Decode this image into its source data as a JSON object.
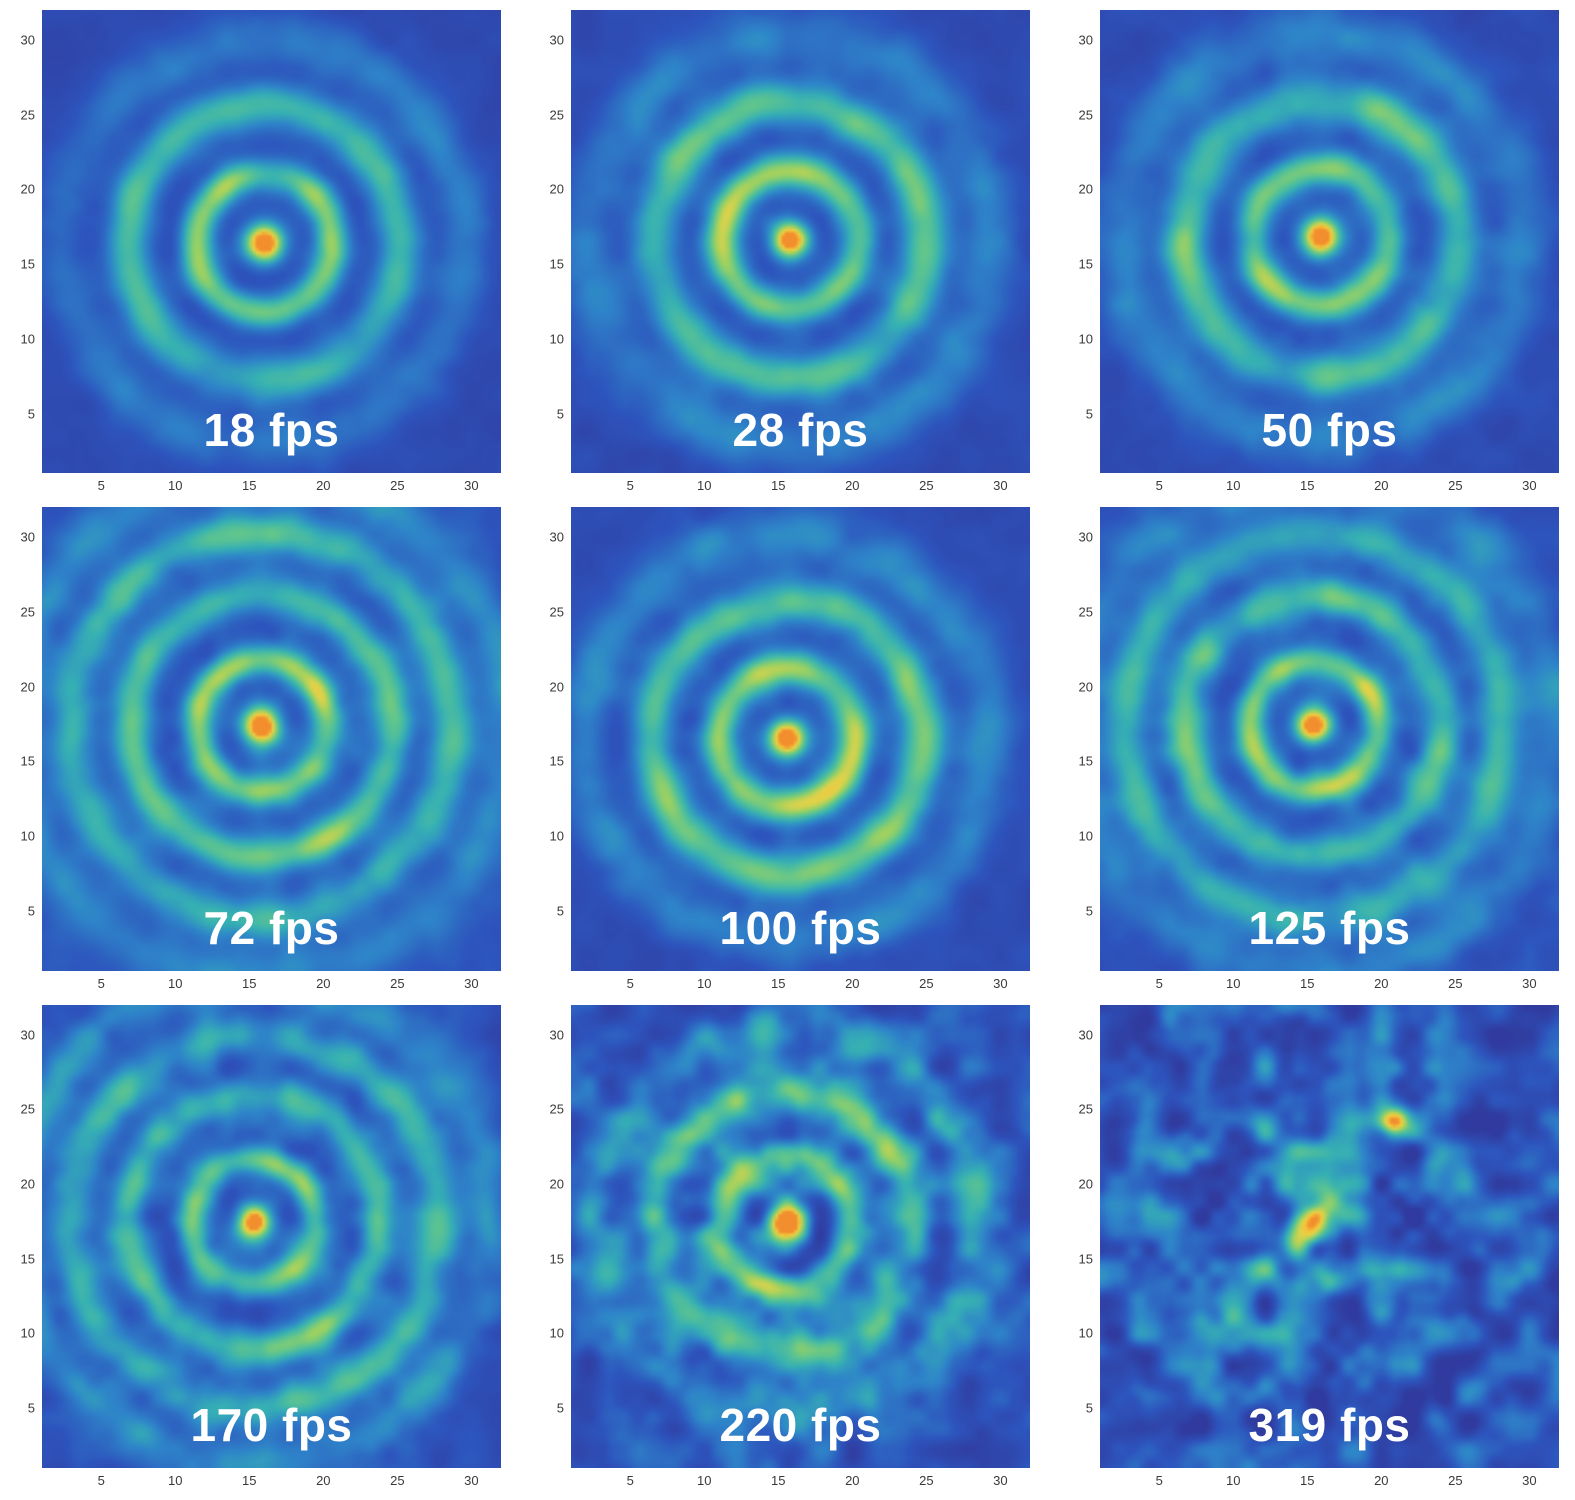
{
  "figure": {
    "background": "#ffffff",
    "tick_text_color": "#3a3a3a",
    "fps_label_color": "#ffffff",
    "grid": {
      "rows": 3,
      "cols": 3
    }
  },
  "chart_data": {
    "type": "heatmap",
    "title": "",
    "layout": {
      "rows": 3,
      "cols": 3,
      "legend": "none",
      "grid_lines": "off",
      "colormap": [
        "#31389b",
        "#2d55bd",
        "#2e84c9",
        "#36b0b4",
        "#5ec58f",
        "#9cd162",
        "#e0d24a",
        "#f5c53a",
        "#f28e2e"
      ],
      "colormap_positions": [
        0,
        0.18,
        0.35,
        0.5,
        0.63,
        0.74,
        0.84,
        0.93,
        1
      ]
    },
    "x_range": [
      1,
      32
    ],
    "y_range": [
      1,
      32
    ],
    "x_ticks": [
      5,
      10,
      15,
      20,
      25,
      30
    ],
    "y_ticks": [
      5,
      10,
      15,
      20,
      25,
      30
    ],
    "panels": [
      {
        "fps": 18,
        "label": "18 fps",
        "center": [
          16.0,
          16.4
        ],
        "sigma": 1.25,
        "peak": 1.0,
        "rings": [
          [
            4.6,
            0.5,
            1.15
          ],
          [
            9.2,
            0.4,
            1.55
          ],
          [
            13.6,
            0.18,
            1.9
          ]
        ],
        "wash": 0.1,
        "noise": 0.06,
        "seed": 11
      },
      {
        "fps": 28,
        "label": "28 fps",
        "center": [
          15.8,
          16.6
        ],
        "sigma": 1.25,
        "peak": 1.0,
        "rings": [
          [
            4.6,
            0.55,
            1.2
          ],
          [
            9.2,
            0.44,
            1.6
          ],
          [
            13.6,
            0.2,
            1.9
          ]
        ],
        "wash": 0.11,
        "noise": 0.07,
        "seed": 22
      },
      {
        "fps": 50,
        "label": "50 fps",
        "center": [
          15.9,
          16.8
        ],
        "sigma": 1.25,
        "peak": 1.0,
        "rings": [
          [
            4.6,
            0.54,
            1.2
          ],
          [
            9.2,
            0.42,
            1.55
          ],
          [
            13.6,
            0.2,
            1.9
          ]
        ],
        "wash": 0.11,
        "noise": 0.08,
        "seed": 33
      },
      {
        "fps": 72,
        "label": "72 fps",
        "center": [
          15.8,
          17.4
        ],
        "sigma": 1.2,
        "peak": 1.0,
        "rings": [
          [
            4.4,
            0.48,
            1.05
          ],
          [
            8.8,
            0.4,
            1.25
          ],
          [
            12.9,
            0.33,
            1.45
          ],
          [
            16.8,
            0.2,
            1.7
          ]
        ],
        "wash": 0.16,
        "noise": 0.09,
        "seed": 44
      },
      {
        "fps": 100,
        "label": "100 fps",
        "center": [
          15.6,
          16.6
        ],
        "sigma": 1.25,
        "peak": 1.0,
        "rings": [
          [
            4.6,
            0.56,
            1.2
          ],
          [
            9.1,
            0.46,
            1.5
          ],
          [
            13.6,
            0.2,
            1.8
          ]
        ],
        "wash": 0.12,
        "noise": 0.08,
        "seed": 55
      },
      {
        "fps": 125,
        "label": "125 fps",
        "center": [
          15.4,
          17.4
        ],
        "sigma": 1.2,
        "peak": 1.0,
        "rings": [
          [
            4.3,
            0.48,
            1.05
          ],
          [
            8.7,
            0.38,
            1.3
          ],
          [
            12.8,
            0.3,
            1.5
          ],
          [
            16.5,
            0.17,
            1.7
          ]
        ],
        "wash": 0.15,
        "noise": 0.11,
        "seed": 66
      },
      {
        "fps": 170,
        "label": "170 fps",
        "center": [
          15.3,
          17.5
        ],
        "sigma": 1.2,
        "peak": 1.0,
        "rings": [
          [
            4.2,
            0.5,
            1.0
          ],
          [
            8.5,
            0.4,
            1.2
          ],
          [
            12.5,
            0.32,
            1.4
          ],
          [
            16.2,
            0.2,
            1.6
          ]
        ],
        "wash": 0.15,
        "noise": 0.15,
        "seed": 77
      },
      {
        "fps": 220,
        "label": "220 fps",
        "center": [
          15.5,
          17.4
        ],
        "sigma": 1.25,
        "peak": 1.0,
        "rings": [
          [
            4.4,
            0.5,
            1.1
          ],
          [
            8.7,
            0.34,
            1.4
          ],
          [
            12.9,
            0.2,
            1.6
          ]
        ],
        "wash": 0.16,
        "noise": 0.26,
        "seed": 88
      },
      {
        "fps": 319,
        "label": "319 fps",
        "center": [
          15.5,
          17.6
        ],
        "sigma": 1.5,
        "peak": 0.8,
        "elong": 0.55,
        "rings": [
          [
            4.6,
            0.15,
            1.4
          ],
          [
            9.2,
            0.08,
            1.7
          ]
        ],
        "wash": 0.15,
        "noise": 0.38,
        "seed": 99,
        "extras": [
          {
            "center": [
              20.8,
              24.2
            ],
            "a": 0.55,
            "sigma": 0.9
          }
        ]
      }
    ]
  }
}
